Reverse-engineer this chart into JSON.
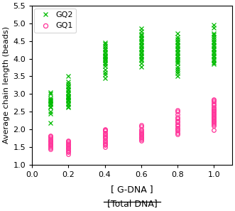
{
  "gq2_data": {
    "x0.1": [
      2.18,
      2.45,
      2.5,
      2.62,
      2.65,
      2.7,
      2.72,
      2.75,
      2.78,
      2.8,
      2.82,
      2.85,
      2.88,
      3.0,
      3.05
    ],
    "x0.2": [
      2.62,
      2.65,
      2.7,
      2.75,
      2.8,
      2.82,
      2.85,
      2.88,
      2.9,
      2.92,
      2.95,
      3.0,
      3.05,
      3.1,
      3.15,
      3.2,
      3.22,
      3.28,
      3.35,
      3.5
    ],
    "x0.4": [
      3.45,
      3.55,
      3.62,
      3.7,
      3.8,
      3.85,
      3.9,
      3.95,
      4.0,
      4.02,
      4.05,
      4.08,
      4.1,
      4.15,
      4.2,
      4.25,
      4.3,
      4.35,
      4.42,
      4.45
    ],
    "x0.6": [
      3.78,
      3.88,
      3.95,
      4.0,
      4.05,
      4.1,
      4.15,
      4.2,
      4.25,
      4.3,
      4.35,
      4.4,
      4.45,
      4.5,
      4.55,
      4.6,
      4.65,
      4.7,
      4.78,
      4.85
    ],
    "x0.8": [
      3.52,
      3.6,
      3.65,
      3.72,
      3.78,
      3.88,
      3.92,
      3.95,
      4.0,
      4.05,
      4.1,
      4.15,
      4.2,
      4.25,
      4.3,
      4.35,
      4.4,
      4.45,
      4.5,
      4.55,
      4.62,
      4.72
    ],
    "x1.0": [
      3.85,
      3.9,
      3.95,
      4.0,
      4.05,
      4.1,
      4.15,
      4.2,
      4.25,
      4.3,
      4.35,
      4.4,
      4.45,
      4.5,
      4.55,
      4.62,
      4.68,
      4.72,
      4.88,
      4.95
    ]
  },
  "gq1_data": {
    "x0.1": [
      1.43,
      1.48,
      1.52,
      1.55,
      1.58,
      1.62,
      1.65,
      1.68,
      1.72,
      1.75,
      1.8,
      1.82
    ],
    "x0.2": [
      1.3,
      1.35,
      1.38,
      1.42,
      1.45,
      1.48,
      1.52,
      1.55,
      1.58,
      1.62,
      1.65,
      1.68
    ],
    "x0.4": [
      1.5,
      1.55,
      1.58,
      1.62,
      1.65,
      1.7,
      1.75,
      1.78,
      1.82,
      1.85,
      1.9,
      1.95,
      1.98,
      2.0
    ],
    "x0.6": [
      1.68,
      1.72,
      1.75,
      1.78,
      1.82,
      1.85,
      1.88,
      1.92,
      1.95,
      2.0,
      2.08,
      2.12
    ],
    "x0.8": [
      1.85,
      1.9,
      1.95,
      2.0,
      2.05,
      2.1,
      2.15,
      2.2,
      2.25,
      2.3,
      2.35,
      2.42,
      2.5,
      2.55
    ],
    "x1.0": [
      1.98,
      2.1,
      2.15,
      2.18,
      2.22,
      2.25,
      2.28,
      2.32,
      2.35,
      2.38,
      2.42,
      2.45,
      2.48,
      2.52,
      2.55,
      2.58,
      2.62,
      2.68,
      2.72,
      2.78,
      2.82,
      2.85
    ]
  },
  "gq2_color": "#00bb00",
  "gq1_color": "#ff3399",
  "ylabel": "Average chain length (beads)",
  "xlim": [
    0,
    1.1
  ],
  "ylim": [
    1.0,
    5.5
  ],
  "xticks": [
    0,
    0.2,
    0.4,
    0.6,
    0.8,
    1.0
  ],
  "yticks": [
    1.0,
    1.5,
    2.0,
    2.5,
    3.0,
    3.5,
    4.0,
    4.5,
    5.0,
    5.5
  ],
  "x_positions": [
    0.1,
    0.2,
    0.4,
    0.6,
    0.8,
    1.0
  ],
  "scatter_spread": 0.003,
  "marker_size": 8,
  "xlabel_top": "[ G-DNA ]",
  "xlabel_bot": "[Total DNA]"
}
